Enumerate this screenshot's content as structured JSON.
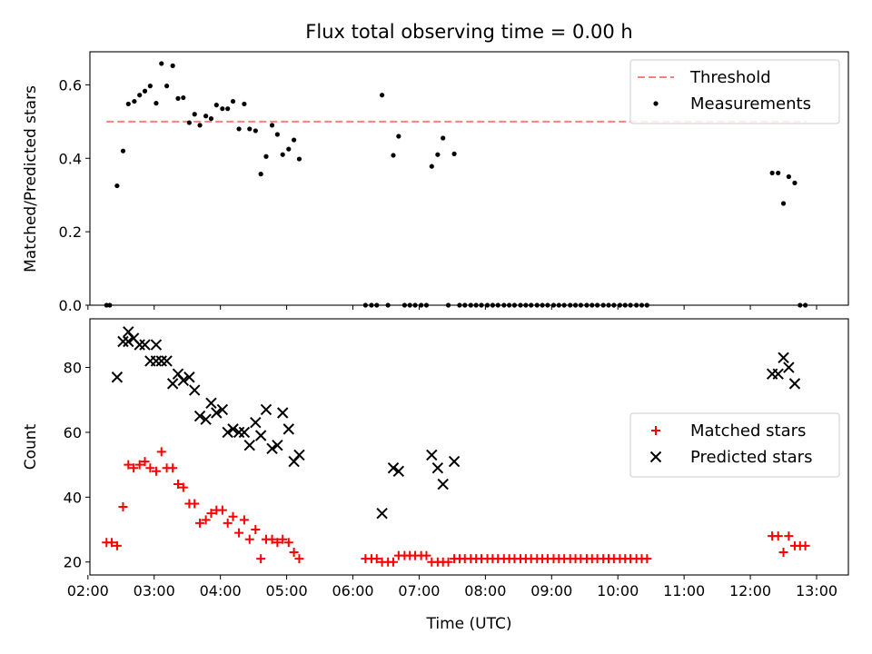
{
  "chart_data": {
    "title": "Flux total observing time = 0.00 h",
    "x_label": "Time (UTC)",
    "x_ticks": [
      "02:00",
      "03:00",
      "04:00",
      "05:00",
      "06:00",
      "07:00",
      "08:00",
      "09:00",
      "10:00",
      "11:00",
      "12:00",
      "13:00"
    ],
    "x_range_hours": [
      2.03,
      13.48
    ],
    "panels": [
      {
        "id": "ratio",
        "type": "scatter",
        "ylabel": "Matched/Predicted stars",
        "ylim": [
          0,
          0.69
        ],
        "yticks": [
          0.0,
          0.2,
          0.4,
          0.6
        ],
        "tick_format": 1,
        "legend_position": "top-right",
        "threshold": {
          "name": "Threshold",
          "value": 0.5,
          "x_range": [
            2.28,
            12.85
          ],
          "color": "#ff7f7f"
        },
        "series": [
          {
            "name": "Measurements",
            "marker": "dot",
            "color": "#000000",
            "points": [
              [
                2.28,
                0.0
              ],
              [
                2.33,
                0.0
              ],
              [
                2.44,
                0.325
              ],
              [
                2.53,
                0.42
              ],
              [
                2.61,
                0.548
              ],
              [
                2.7,
                0.555
              ],
              [
                2.78,
                0.572
              ],
              [
                2.86,
                0.583
              ],
              [
                2.94,
                0.597
              ],
              [
                3.03,
                0.55
              ],
              [
                3.11,
                0.658
              ],
              [
                3.19,
                0.597
              ],
              [
                3.28,
                0.652
              ],
              [
                3.36,
                0.563
              ],
              [
                3.44,
                0.565
              ],
              [
                3.53,
                0.497
              ],
              [
                3.61,
                0.52
              ],
              [
                3.69,
                0.49
              ],
              [
                3.78,
                0.515
              ],
              [
                3.86,
                0.508
              ],
              [
                3.94,
                0.545
              ],
              [
                4.03,
                0.535
              ],
              [
                4.11,
                0.535
              ],
              [
                4.19,
                0.555
              ],
              [
                4.28,
                0.48
              ],
              [
                4.36,
                0.548
              ],
              [
                4.44,
                0.48
              ],
              [
                4.53,
                0.475
              ],
              [
                4.61,
                0.357
              ],
              [
                4.69,
                0.405
              ],
              [
                4.78,
                0.49
              ],
              [
                4.86,
                0.465
              ],
              [
                4.94,
                0.41
              ],
              [
                5.03,
                0.425
              ],
              [
                5.11,
                0.45
              ],
              [
                5.19,
                0.398
              ],
              [
                6.19,
                0.0
              ],
              [
                6.28,
                0.0
              ],
              [
                6.36,
                0.0
              ],
              [
                6.44,
                0.572
              ],
              [
                6.53,
                0.0
              ],
              [
                6.61,
                0.408
              ],
              [
                6.69,
                0.46
              ],
              [
                6.78,
                0.0
              ],
              [
                6.86,
                0.0
              ],
              [
                6.94,
                0.0
              ],
              [
                7.03,
                0.0
              ],
              [
                7.11,
                0.0
              ],
              [
                7.19,
                0.378
              ],
              [
                7.28,
                0.41
              ],
              [
                7.36,
                0.455
              ],
              [
                7.44,
                0.0
              ],
              [
                7.53,
                0.412
              ],
              [
                7.61,
                0.0
              ],
              [
                7.69,
                0.0
              ],
              [
                7.78,
                0.0
              ],
              [
                7.86,
                0.0
              ],
              [
                7.94,
                0.0
              ],
              [
                8.03,
                0.0
              ],
              [
                8.11,
                0.0
              ],
              [
                8.19,
                0.0
              ],
              [
                8.28,
                0.0
              ],
              [
                8.36,
                0.0
              ],
              [
                8.44,
                0.0
              ],
              [
                8.53,
                0.0
              ],
              [
                8.61,
                0.0
              ],
              [
                8.69,
                0.0
              ],
              [
                8.78,
                0.0
              ],
              [
                8.86,
                0.0
              ],
              [
                8.94,
                0.0
              ],
              [
                9.03,
                0.0
              ],
              [
                9.11,
                0.0
              ],
              [
                9.19,
                0.0
              ],
              [
                9.28,
                0.0
              ],
              [
                9.36,
                0.0
              ],
              [
                9.44,
                0.0
              ],
              [
                9.53,
                0.0
              ],
              [
                9.61,
                0.0
              ],
              [
                9.69,
                0.0
              ],
              [
                9.78,
                0.0
              ],
              [
                9.86,
                0.0
              ],
              [
                9.94,
                0.0
              ],
              [
                10.03,
                0.0
              ],
              [
                10.11,
                0.0
              ],
              [
                10.19,
                0.0
              ],
              [
                10.28,
                0.0
              ],
              [
                10.36,
                0.0
              ],
              [
                10.44,
                0.0
              ],
              [
                12.33,
                0.36
              ],
              [
                12.42,
                0.36
              ],
              [
                12.5,
                0.277
              ],
              [
                12.58,
                0.35
              ],
              [
                12.67,
                0.333
              ],
              [
                12.75,
                0.0
              ],
              [
                12.83,
                0.0
              ]
            ]
          }
        ]
      },
      {
        "id": "counts",
        "type": "scatter",
        "ylabel": "Count",
        "ylim": [
          16,
          95
        ],
        "yticks": [
          20,
          40,
          60,
          80
        ],
        "tick_format": 0,
        "legend_position": "center-right",
        "series": [
          {
            "name": "Matched stars",
            "marker": "plus",
            "color": "#ff0000",
            "points": [
              [
                2.28,
                26
              ],
              [
                2.36,
                26
              ],
              [
                2.44,
                25
              ],
              [
                2.53,
                37
              ],
              [
                2.61,
                50
              ],
              [
                2.69,
                49
              ],
              [
                2.78,
                50
              ],
              [
                2.86,
                51
              ],
              [
                2.94,
                49
              ],
              [
                3.03,
                48
              ],
              [
                3.11,
                54
              ],
              [
                3.19,
                49
              ],
              [
                3.28,
                49
              ],
              [
                3.36,
                44
              ],
              [
                3.44,
                43
              ],
              [
                3.53,
                38
              ],
              [
                3.61,
                38
              ],
              [
                3.69,
                32
              ],
              [
                3.78,
                33
              ],
              [
                3.86,
                35
              ],
              [
                3.94,
                36
              ],
              [
                4.03,
                36
              ],
              [
                4.11,
                32
              ],
              [
                4.19,
                34
              ],
              [
                4.28,
                29
              ],
              [
                4.36,
                33
              ],
              [
                4.44,
                27
              ],
              [
                4.53,
                30
              ],
              [
                4.61,
                21
              ],
              [
                4.69,
                27
              ],
              [
                4.78,
                27
              ],
              [
                4.86,
                26
              ],
              [
                4.94,
                27
              ],
              [
                5.03,
                26
              ],
              [
                5.11,
                23
              ],
              [
                5.19,
                21
              ],
              [
                6.19,
                21
              ],
              [
                6.28,
                21
              ],
              [
                6.36,
                21
              ],
              [
                6.44,
                20
              ],
              [
                6.53,
                20
              ],
              [
                6.61,
                20
              ],
              [
                6.69,
                22
              ],
              [
                6.78,
                22
              ],
              [
                6.86,
                22
              ],
              [
                6.94,
                22
              ],
              [
                7.03,
                22
              ],
              [
                7.11,
                22
              ],
              [
                7.19,
                20
              ],
              [
                7.28,
                20
              ],
              [
                7.36,
                20
              ],
              [
                7.44,
                20
              ],
              [
                7.53,
                21
              ],
              [
                7.61,
                21
              ],
              [
                7.69,
                21
              ],
              [
                7.78,
                21
              ],
              [
                7.86,
                21
              ],
              [
                7.94,
                21
              ],
              [
                8.03,
                21
              ],
              [
                8.11,
                21
              ],
              [
                8.19,
                21
              ],
              [
                8.28,
                21
              ],
              [
                8.36,
                21
              ],
              [
                8.44,
                21
              ],
              [
                8.53,
                21
              ],
              [
                8.61,
                21
              ],
              [
                8.69,
                21
              ],
              [
                8.78,
                21
              ],
              [
                8.86,
                21
              ],
              [
                8.94,
                21
              ],
              [
                9.03,
                21
              ],
              [
                9.11,
                21
              ],
              [
                9.19,
                21
              ],
              [
                9.28,
                21
              ],
              [
                9.36,
                21
              ],
              [
                9.44,
                21
              ],
              [
                9.53,
                21
              ],
              [
                9.61,
                21
              ],
              [
                9.69,
                21
              ],
              [
                9.78,
                21
              ],
              [
                9.86,
                21
              ],
              [
                9.94,
                21
              ],
              [
                10.03,
                21
              ],
              [
                10.11,
                21
              ],
              [
                10.19,
                21
              ],
              [
                10.28,
                21
              ],
              [
                10.36,
                21
              ],
              [
                10.44,
                21
              ],
              [
                12.33,
                28
              ],
              [
                12.42,
                28
              ],
              [
                12.5,
                23
              ],
              [
                12.58,
                28
              ],
              [
                12.67,
                25
              ],
              [
                12.75,
                25
              ],
              [
                12.83,
                25
              ]
            ]
          },
          {
            "name": "Predicted stars",
            "marker": "x",
            "color": "#000000",
            "points": [
              [
                2.44,
                77
              ],
              [
                2.53,
                88
              ],
              [
                2.61,
                91
              ],
              [
                2.61,
                88
              ],
              [
                2.69,
                89
              ],
              [
                2.78,
                87
              ],
              [
                2.86,
                87
              ],
              [
                2.94,
                82
              ],
              [
                3.03,
                87
              ],
              [
                3.03,
                82
              ],
              [
                3.11,
                82
              ],
              [
                3.19,
                82
              ],
              [
                3.28,
                75
              ],
              [
                3.36,
                78
              ],
              [
                3.44,
                76
              ],
              [
                3.53,
                77
              ],
              [
                3.61,
                73
              ],
              [
                3.69,
                65
              ],
              [
                3.78,
                64
              ],
              [
                3.86,
                69
              ],
              [
                3.94,
                66
              ],
              [
                4.03,
                67
              ],
              [
                4.11,
                60
              ],
              [
                4.19,
                61
              ],
              [
                4.28,
                60
              ],
              [
                4.36,
                60
              ],
              [
                4.44,
                56
              ],
              [
                4.53,
                63
              ],
              [
                4.61,
                59
              ],
              [
                4.69,
                67
              ],
              [
                4.78,
                55
              ],
              [
                4.86,
                56
              ],
              [
                4.94,
                66
              ],
              [
                5.03,
                61
              ],
              [
                5.11,
                51
              ],
              [
                5.19,
                53
              ],
              [
                6.44,
                35
              ],
              [
                6.61,
                49
              ],
              [
                6.69,
                48
              ],
              [
                7.19,
                53
              ],
              [
                7.28,
                49
              ],
              [
                7.36,
                44
              ],
              [
                7.53,
                51
              ],
              [
                12.33,
                78
              ],
              [
                12.42,
                78
              ],
              [
                12.5,
                83
              ],
              [
                12.58,
                80
              ],
              [
                12.67,
                75
              ]
            ]
          }
        ]
      }
    ]
  }
}
